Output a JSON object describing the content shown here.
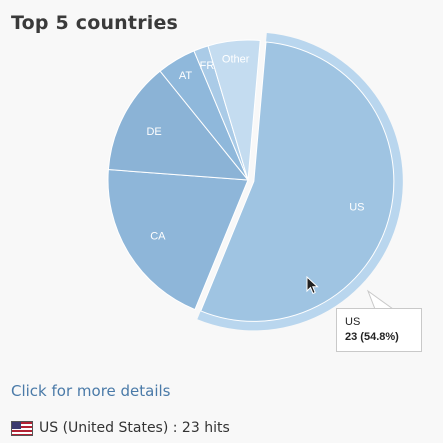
{
  "title": "Top 5 countries",
  "chart_data": {
    "type": "pie",
    "title": "Top 5 countries",
    "slices": [
      {
        "label": "US",
        "value": 54.8,
        "color": "#9fc4e2"
      },
      {
        "label": "CA",
        "value": 20.0,
        "color": "#8eb6d9"
      },
      {
        "label": "DE",
        "value": 13.0,
        "color": "#8bb3d6"
      },
      {
        "label": "AT",
        "value": 4.5,
        "color": "#8fb8db"
      },
      {
        "label": "FR",
        "value": 1.7,
        "color": "#aacbe7"
      },
      {
        "label": "Other",
        "value": 6.0,
        "color": "#c4dcf0"
      }
    ],
    "highlight_color": "#b9d6ee",
    "start_angle_deg": 5
  },
  "tooltip": {
    "label": "US",
    "value": "23 (54.8%)"
  },
  "more_link": "Click for more details",
  "hits_line": "US (United States) : 23 hits",
  "flag_icon": "us-flag-icon"
}
